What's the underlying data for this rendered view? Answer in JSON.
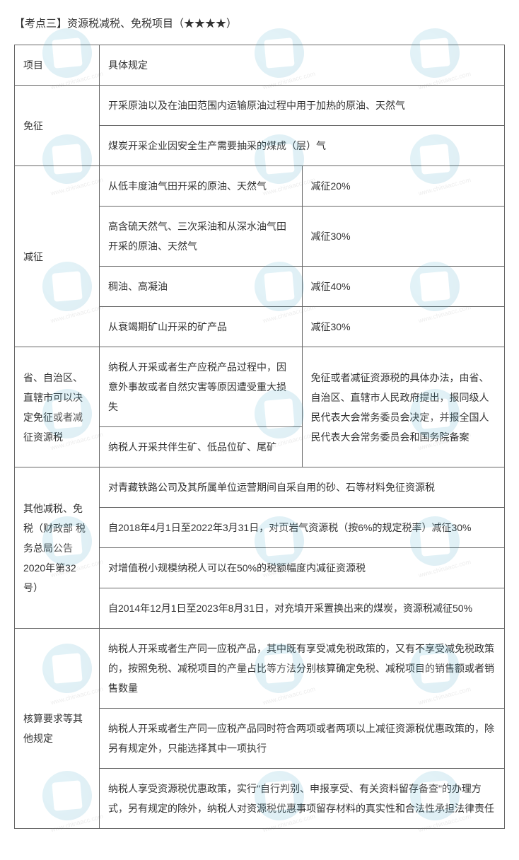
{
  "title": "【考点三】资源税减税、免税项目（★★★★）",
  "watermark_url": "www.chinaacc.com",
  "table": {
    "header": {
      "c1": "项目",
      "c2": "具体规定"
    },
    "exempt": {
      "label": "免征",
      "r1": "开采原油以及在油田范围内运输原油过程中用于加热的原油、天然气",
      "r2": "煤炭开采企业因安全生产需要抽采的煤成（层）气"
    },
    "reduce": {
      "label": "减征",
      "r1a": "从低丰度油气田开采的原油、天然气",
      "r1b": "减征20%",
      "r2a": "高含硫天然气、三次采油和从深水油气田开采的原油、天然气",
      "r2b": "减征30%",
      "r3a": "稠油、高凝油",
      "r3b": "减征40%",
      "r4a": "从衰竭期矿山开采的矿产品",
      "r4b": "减征30%"
    },
    "province": {
      "label": "省、自治区、直辖市可以决定免征或者减征资源税",
      "r1a": "纳税人开采或者生产应税产品过程中，因意外事故或者自然灾害等原因遭受重大损失",
      "rb": "免征或者减征资源税的具体办法，由省、自治区、直辖市人民政府提出，报同级人民代表大会常务委员会决定，并报全国人民代表大会常务委员会和国务院备案",
      "r2a": "纳税人开采共伴生矿、低品位矿、尾矿"
    },
    "other": {
      "label": "其他减税、免税（财政部 税务总局公告2020年第32号）",
      "r1": "对青藏铁路公司及其所属单位运营期间自采自用的砂、石等材料免征资源税",
      "r2": "自2018年4月1日至2022年3月31日，对页岩气资源税（按6%的规定税率）减征30%",
      "r3": "对增值税小规模纳税人可以在50%的税额幅度内减征资源税",
      "r4": "自2014年12月1日至2023年8月31日，对充填开采置换出来的煤炭，资源税减征50%"
    },
    "accounting": {
      "label": "核算要求等其他规定",
      "r1": "纳税人开采或者生产同一应税产品，其中既有享受减免税政策的，又有不享受减免税政策的，按照免税、减税项目的产量占比等方法分别核算确定免税、减税项目的销售额或者销售数量",
      "r2": "纳税人开采或者生产同一应税产品同时符合两项或者两项以上减征资源税优惠政策的，除另有规定外，只能选择其中一项执行",
      "r3": "纳税人享受资源税优惠政策，实行\"自行判别、申报享受、有关资料留存备查\"的办理方式，另有规定的除外，纳税人对资源税优惠事项留存材料的真实性和合法性承担法律责任"
    }
  }
}
